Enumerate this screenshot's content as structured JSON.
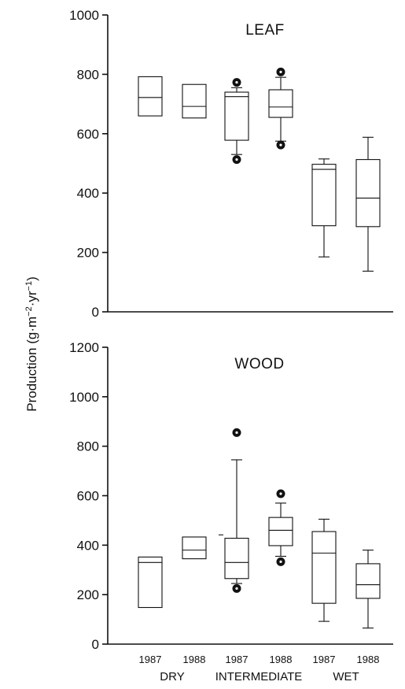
{
  "chart_data": [
    {
      "type": "box",
      "panel_label": "LEAF",
      "ylim": [
        0,
        1000
      ],
      "yticks": [
        0,
        200,
        400,
        600,
        800,
        1000
      ],
      "boxes": [
        {
          "group": "DRY",
          "year": "1987",
          "q1": 660,
          "median": 722,
          "q3": 792
        },
        {
          "group": "DRY",
          "year": "1988",
          "q1": 653,
          "median": 692,
          "q3": 766
        },
        {
          "group": "INTERMEDIATE",
          "year": "1987",
          "whisker_low": 530,
          "q1": 578,
          "median": 725,
          "q3": 740,
          "whisker_high": 755,
          "outliers": [
            513,
            773
          ]
        },
        {
          "group": "INTERMEDIATE",
          "year": "1988",
          "whisker_low": 575,
          "q1": 655,
          "median": 690,
          "q3": 748,
          "whisker_high": 790,
          "outliers": [
            562,
            808
          ]
        },
        {
          "group": "WET",
          "year": "1987",
          "whisker_low": 185,
          "q1": 290,
          "median": 480,
          "q3": 497,
          "whisker_high": 515
        },
        {
          "group": "WET",
          "year": "1988",
          "whisker_low": 137,
          "q1": 287,
          "median": 383,
          "q3": 513,
          "whisker_high": 588
        }
      ]
    },
    {
      "type": "box",
      "panel_label": "WOOD",
      "ylim": [
        0,
        1200
      ],
      "yticks": [
        0,
        200,
        400,
        600,
        800,
        1000,
        1200
      ],
      "boxes": [
        {
          "group": "DRY",
          "year": "1987",
          "q1": 148,
          "median": 330,
          "q3": 352
        },
        {
          "group": "DRY",
          "year": "1988",
          "q1": 345,
          "median": 380,
          "q3": 433
        },
        {
          "group": "INTERMEDIATE",
          "year": "1987",
          "whisker_low": 245,
          "q1": 265,
          "median": 330,
          "q3": 428,
          "whisker_high": 745,
          "outliers": [
            225,
            855
          ]
        },
        {
          "group": "INTERMEDIATE",
          "year": "1988",
          "whisker_low": 355,
          "q1": 398,
          "median": 460,
          "q3": 512,
          "whisker_high": 570,
          "outliers": [
            333,
            608
          ]
        },
        {
          "group": "WET",
          "year": "1987",
          "whisker_low": 92,
          "q1": 165,
          "median": 368,
          "q3": 455,
          "whisker_high": 505
        },
        {
          "group": "WET",
          "year": "1988",
          "whisker_low": 65,
          "q1": 185,
          "median": 240,
          "q3": 325,
          "whisker_high": 380
        }
      ]
    }
  ],
  "ylabel": {
    "main": "Production (g·m",
    "sup1": "−2",
    "mid": "·yr",
    "sup2": "−1",
    "close": ")"
  },
  "x_years": [
    "1987",
    "1988",
    "1987",
    "1988",
    "1987",
    "1988"
  ],
  "x_groups": [
    "DRY",
    "INTERMEDIATE",
    "WET"
  ],
  "colors": {
    "ink": "#111111",
    "background": "#ffffff"
  }
}
